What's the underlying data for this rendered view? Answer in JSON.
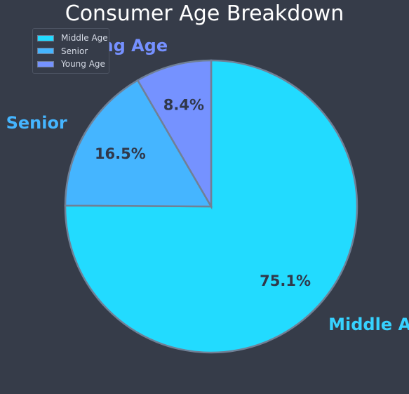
{
  "chart_data": {
    "type": "pie",
    "title": "Consumer Age Breakdown",
    "categories": [
      "Middle Age",
      "Senior",
      "Young Age"
    ],
    "values": [
      75.1,
      16.5,
      8.4
    ],
    "value_labels": [
      "75.1%",
      "16.5%",
      "8.4%"
    ],
    "colors": [
      "#22dbff",
      "#45b5ff",
      "#7592ff"
    ],
    "label_colors": [
      "#36d2ff",
      "#45b5ff",
      "#7590ff"
    ],
    "start_angle_deg": 90,
    "direction": "clockwise",
    "legend": {
      "position": "top-left",
      "entries": [
        "Middle Age",
        "Senior",
        "Young Age"
      ]
    }
  }
}
